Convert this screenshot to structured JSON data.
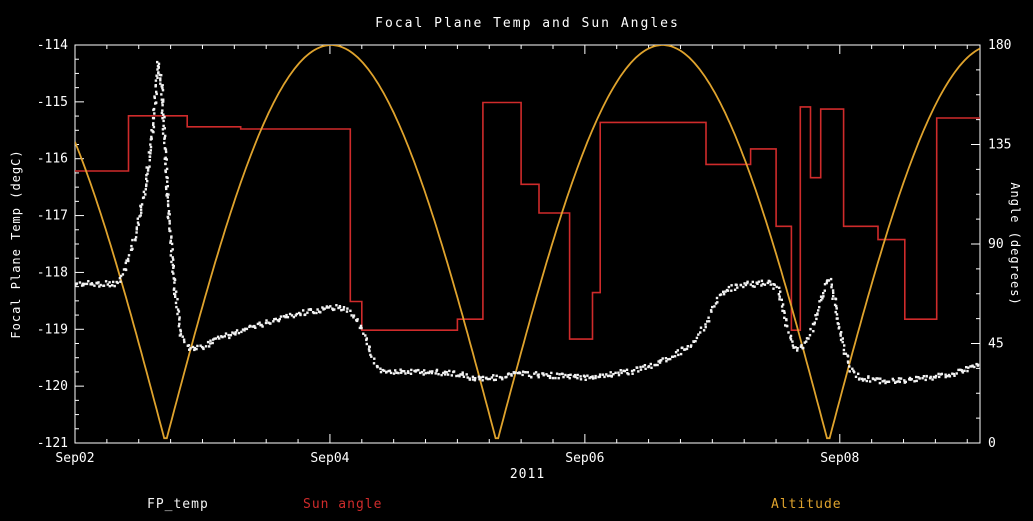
{
  "title": "Focal Plane Temp and Sun Angles",
  "colors": {
    "background": "#000000",
    "foreground": "#ffffff",
    "fp_temp": "#f2f2f2",
    "sun_angle": "#cf2b2b",
    "altitude": "#dfa32d"
  },
  "axes": {
    "x": {
      "tick_labels": [
        "Sep02",
        "Sep04",
        "Sep06",
        "Sep08"
      ],
      "tick_days": [
        0,
        2,
        4,
        6
      ],
      "range_days": [
        0,
        7.1
      ],
      "year_label": "2011"
    },
    "y_left": {
      "label": "Focal Plane Temp (degC)",
      "ticks": [
        "-114",
        "-115",
        "-116",
        "-117",
        "-118",
        "-119",
        "-120",
        "-121"
      ],
      "range": [
        -121,
        -114
      ]
    },
    "y_right": {
      "label": "Angle (degrees)",
      "ticks": [
        "0",
        "45",
        "90",
        "135",
        "180"
      ],
      "range": [
        0,
        180
      ]
    }
  },
  "legend": [
    {
      "label": "FP_temp",
      "color": "fp_temp"
    },
    {
      "label": "Sun angle",
      "color": "sun_angle"
    },
    {
      "label": "Altitude",
      "color": "altitude"
    }
  ],
  "chart_data": {
    "type": "line",
    "title": "Focal Plane Temp and Sun Angles",
    "x_unit": "days since Sep02 2011",
    "x_range_days": [
      0,
      7.1
    ],
    "y_left_label": "Focal Plane Temp (degC)",
    "y_left_range": [
      -121,
      -114
    ],
    "y_right_label": "Angle (degrees)",
    "y_right_range": [
      0,
      180
    ],
    "grid": false,
    "background": "black",
    "series": [
      {
        "name": "FP_temp",
        "axis": "left",
        "style": "scatter",
        "points": [
          [
            0.0,
            -118.2
          ],
          [
            0.34,
            -118.2
          ],
          [
            0.4,
            -117.9
          ],
          [
            0.48,
            -117.3
          ],
          [
            0.56,
            -116.4
          ],
          [
            0.62,
            -115.3
          ],
          [
            0.655,
            -114.3
          ],
          [
            0.68,
            -114.7
          ],
          [
            0.7,
            -115.6
          ],
          [
            0.73,
            -116.8
          ],
          [
            0.78,
            -118.2
          ],
          [
            0.83,
            -119.1
          ],
          [
            0.9,
            -119.35
          ],
          [
            1.0,
            -119.3
          ],
          [
            1.15,
            -119.15
          ],
          [
            1.35,
            -119.0
          ],
          [
            1.55,
            -118.85
          ],
          [
            1.75,
            -118.72
          ],
          [
            1.95,
            -118.65
          ],
          [
            2.05,
            -118.6
          ],
          [
            2.12,
            -118.65
          ],
          [
            2.2,
            -118.8
          ],
          [
            2.28,
            -119.1
          ],
          [
            2.33,
            -119.5
          ],
          [
            2.38,
            -119.7
          ],
          [
            2.55,
            -119.75
          ],
          [
            2.8,
            -119.75
          ],
          [
            3.0,
            -119.78
          ],
          [
            3.1,
            -119.85
          ],
          [
            3.35,
            -119.85
          ],
          [
            3.45,
            -119.78
          ],
          [
            3.6,
            -119.8
          ],
          [
            3.8,
            -119.82
          ],
          [
            4.0,
            -119.85
          ],
          [
            4.15,
            -119.8
          ],
          [
            4.35,
            -119.75
          ],
          [
            4.55,
            -119.62
          ],
          [
            4.7,
            -119.45
          ],
          [
            4.85,
            -119.25
          ],
          [
            4.95,
            -118.9
          ],
          [
            5.02,
            -118.55
          ],
          [
            5.1,
            -118.3
          ],
          [
            5.25,
            -118.22
          ],
          [
            5.45,
            -118.18
          ],
          [
            5.52,
            -118.3
          ],
          [
            5.58,
            -118.9
          ],
          [
            5.65,
            -119.35
          ],
          [
            5.72,
            -119.3
          ],
          [
            5.8,
            -118.9
          ],
          [
            5.88,
            -118.25
          ],
          [
            5.92,
            -118.1
          ],
          [
            5.97,
            -118.6
          ],
          [
            6.02,
            -119.2
          ],
          [
            6.08,
            -119.7
          ],
          [
            6.15,
            -119.85
          ],
          [
            6.3,
            -119.9
          ],
          [
            6.55,
            -119.9
          ],
          [
            6.75,
            -119.85
          ],
          [
            6.95,
            -119.75
          ],
          [
            7.05,
            -119.65
          ],
          [
            7.1,
            -119.6
          ]
        ]
      },
      {
        "name": "Sun angle",
        "axis": "right",
        "style": "step",
        "points": [
          [
            0.0,
            123
          ],
          [
            0.42,
            148
          ],
          [
            0.88,
            143
          ],
          [
            1.3,
            142
          ],
          [
            2.16,
            64
          ],
          [
            2.25,
            51
          ],
          [
            3.0,
            56
          ],
          [
            3.2,
            154
          ],
          [
            3.5,
            117
          ],
          [
            3.64,
            104
          ],
          [
            3.88,
            47
          ],
          [
            4.06,
            68
          ],
          [
            4.12,
            145
          ],
          [
            4.95,
            126
          ],
          [
            5.3,
            133
          ],
          [
            5.5,
            98
          ],
          [
            5.62,
            51
          ],
          [
            5.69,
            152
          ],
          [
            5.77,
            120
          ],
          [
            5.85,
            151
          ],
          [
            6.03,
            98
          ],
          [
            6.3,
            92
          ],
          [
            6.51,
            56
          ],
          [
            6.76,
            147
          ],
          [
            7.1,
            147
          ]
        ]
      },
      {
        "name": "Altitude",
        "axis": "right",
        "style": "abs_sine",
        "zero_days": [
          0.71,
          3.31,
          5.91
        ],
        "period_days": 2.6,
        "peak": 180,
        "min": 0
      }
    ]
  }
}
